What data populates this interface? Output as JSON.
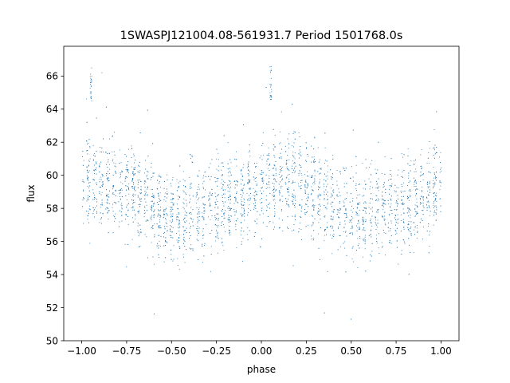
{
  "chart_data": {
    "type": "scatter",
    "title": "1SWASPJ121004.08-561931.7 Period 1501768.0s",
    "xlabel": "phase",
    "ylabel": "flux",
    "xlim": [
      -1.1,
      1.1
    ],
    "ylim": [
      50,
      67.8
    ],
    "xticks": [
      -1.0,
      -0.75,
      -0.5,
      -0.25,
      0.0,
      0.25,
      0.5,
      0.75,
      1.0
    ],
    "xtick_labels": [
      "−1.00",
      "−0.75",
      "−0.50",
      "−0.25",
      "0.00",
      "0.25",
      "0.50",
      "0.75",
      "1.00"
    ],
    "yticks": [
      50,
      52,
      54,
      56,
      58,
      60,
      62,
      64,
      66
    ],
    "ytick_labels": [
      "50",
      "52",
      "54",
      "56",
      "58",
      "60",
      "62",
      "64",
      "66"
    ],
    "grid": false,
    "legend": "none",
    "marker_color": "#1f77b4",
    "series": [
      {
        "x_range": [
          -1.0,
          1.0
        ],
        "profile": [
          [
            -1.0,
            59.4
          ],
          [
            -0.95,
            59.6
          ],
          [
            -0.9,
            59.7
          ],
          [
            -0.85,
            59.7
          ],
          [
            -0.8,
            59.6
          ],
          [
            -0.75,
            59.2
          ],
          [
            -0.7,
            58.9
          ],
          [
            -0.65,
            58.6
          ],
          [
            -0.6,
            58.2
          ],
          [
            -0.55,
            57.8
          ],
          [
            -0.5,
            57.6
          ],
          [
            -0.45,
            57.6
          ],
          [
            -0.4,
            57.8
          ],
          [
            -0.35,
            58.0
          ],
          [
            -0.3,
            58.3
          ],
          [
            -0.25,
            58.4
          ],
          [
            -0.2,
            58.4
          ],
          [
            -0.15,
            58.6
          ],
          [
            -0.1,
            58.8
          ],
          [
            -0.05,
            59.1
          ],
          [
            0.0,
            59.4
          ],
          [
            0.05,
            59.6
          ],
          [
            0.1,
            59.7
          ],
          [
            0.15,
            59.7
          ],
          [
            0.2,
            59.6
          ],
          [
            0.25,
            59.2
          ],
          [
            0.3,
            58.9
          ],
          [
            0.35,
            58.6
          ],
          [
            0.4,
            58.2
          ],
          [
            0.45,
            57.8
          ],
          [
            0.5,
            57.6
          ],
          [
            0.55,
            57.6
          ],
          [
            0.6,
            57.8
          ],
          [
            0.65,
            58.0
          ],
          [
            0.7,
            58.3
          ],
          [
            0.75,
            58.4
          ],
          [
            0.8,
            58.4
          ],
          [
            0.85,
            58.6
          ],
          [
            0.9,
            58.8
          ],
          [
            0.95,
            59.1
          ],
          [
            1.0,
            59.4
          ]
        ],
        "scatter_sd": 1.4,
        "spikes": [
          {
            "x": -0.95,
            "y": [
              64.5,
              66.6
            ]
          },
          {
            "x": 0.05,
            "y": [
              64.5,
              66.6
            ]
          }
        ]
      }
    ]
  }
}
